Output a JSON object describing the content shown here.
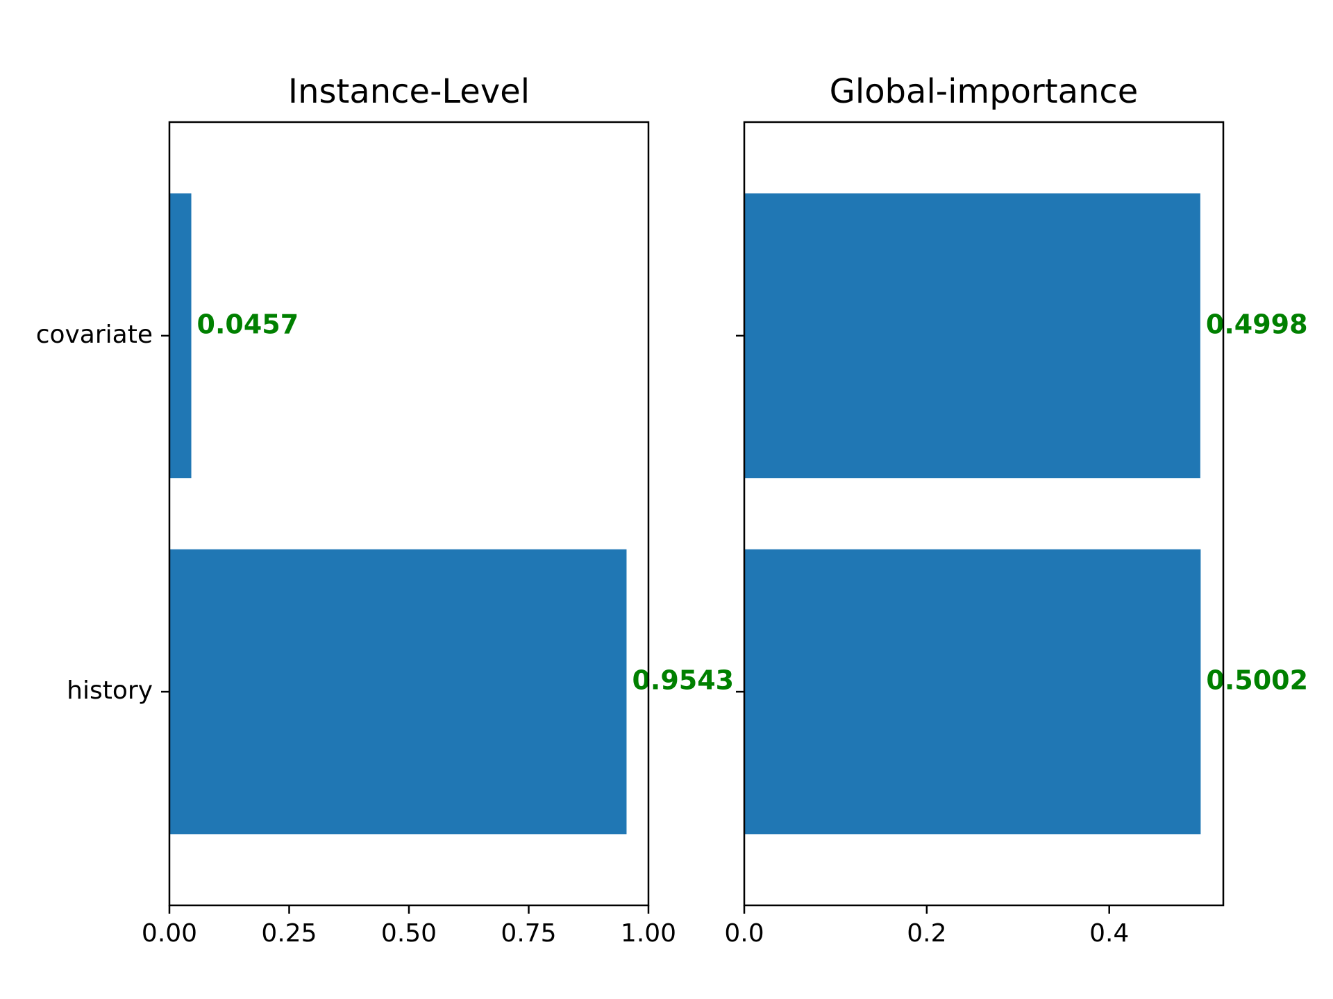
{
  "colors": {
    "bar": "#2077b4",
    "value_label": "#008000",
    "axes": "#000000"
  },
  "chart_data": [
    {
      "type": "bar",
      "orientation": "horizontal",
      "title": "Instance-Level",
      "categories": [
        "history",
        "covariate"
      ],
      "values": [
        0.9543,
        0.0457
      ],
      "value_labels": [
        "0.9543",
        "0.0457"
      ],
      "xlim": [
        0.0,
        1.0
      ],
      "xticks": [
        0.0,
        0.25,
        0.5,
        0.75,
        1.0
      ],
      "xtick_labels": [
        "0.00",
        "0.25",
        "0.50",
        "0.75",
        "1.00"
      ],
      "ytick_labels": [
        "history",
        "covariate"
      ],
      "grid": false
    },
    {
      "type": "bar",
      "orientation": "horizontal",
      "title": "Global-importance",
      "categories": [
        "history",
        "covariate"
      ],
      "values": [
        0.5002,
        0.4998
      ],
      "value_labels": [
        "0.5002",
        "0.4998"
      ],
      "xlim": [
        0.0,
        0.525
      ],
      "xticks": [
        0.0,
        0.2,
        0.4
      ],
      "xtick_labels": [
        "0.0",
        "0.2",
        "0.4"
      ],
      "ytick_labels": [
        "",
        ""
      ],
      "grid": false
    }
  ]
}
